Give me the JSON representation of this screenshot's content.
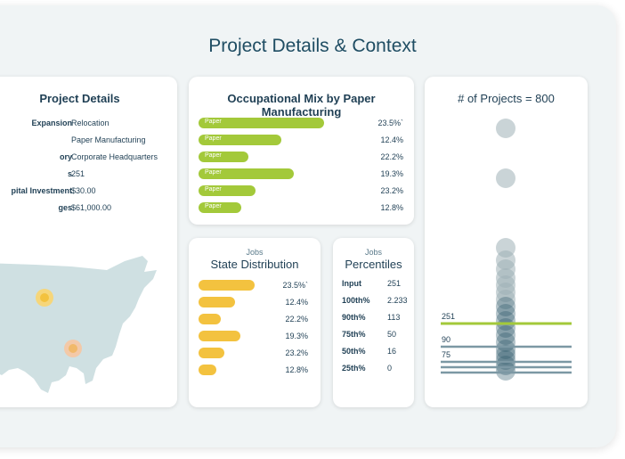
{
  "page_title": "Project Details & Context",
  "details": {
    "title": "Project Details",
    "rows": [
      {
        "key": "Expansion",
        "value": "Relocation"
      },
      {
        "key": "",
        "value": "Paper Manufacturing"
      },
      {
        "key": "ory",
        "value": "Corporate Headquarters"
      },
      {
        "key": "s",
        "value": "251"
      },
      {
        "key": "pital Investment",
        "value": "$30.00"
      },
      {
        "key": "ges",
        "value": "$61,000.00"
      }
    ]
  },
  "occupational": {
    "title": "Occupational Mix by Paper Manufacturing",
    "rows": [
      {
        "label": "Paper",
        "value": "23.5%`",
        "fill": 0.88
      },
      {
        "label": "Paper",
        "value": "12.4%",
        "fill": 0.58
      },
      {
        "label": "Paper",
        "value": "22.2%",
        "fill": 0.35
      },
      {
        "label": "Paper",
        "value": "19.3%",
        "fill": 0.67
      },
      {
        "label": "Paper",
        "value": "23.2%",
        "fill": 0.4
      },
      {
        "label": "Paper",
        "value": "12.8%",
        "fill": 0.3
      }
    ]
  },
  "state": {
    "small_label": "Jobs",
    "title": "State Distribution",
    "rows": [
      {
        "value": "23.5%`",
        "fill": 0.68
      },
      {
        "value": "12.4%",
        "fill": 0.45
      },
      {
        "value": "22.2%",
        "fill": 0.27
      },
      {
        "value": "19.3%",
        "fill": 0.51
      },
      {
        "value": "23.2%",
        "fill": 0.31
      },
      {
        "value": "12.8%",
        "fill": 0.22
      }
    ]
  },
  "percentiles": {
    "small_label": "Jobs",
    "title": "Percentiles",
    "rows": [
      {
        "key": "Input",
        "value": "251"
      },
      {
        "key": "100th%",
        "value": "2.233"
      },
      {
        "key": "90th%",
        "value": "113"
      },
      {
        "key": "75th%",
        "value": "50"
      },
      {
        "key": "50th%",
        "value": "16"
      },
      {
        "key": "25th%",
        "value": "0"
      }
    ]
  },
  "projects": {
    "title": "# of Projects = 800",
    "lines": [
      {
        "label": "251",
        "color": "#a3c93a"
      },
      {
        "label": "90",
        "color": "#7c98a4"
      },
      {
        "label": "75",
        "color": "#7c98a4"
      }
    ]
  },
  "colors": {
    "accent_green": "#a3c93a",
    "accent_yellow": "#f3c23f",
    "map_fill": "#cfe0e2",
    "marker_orange": "#f3c23f",
    "dot_gray": "#9fb0b6",
    "dot_teal": "#2f5a6a"
  }
}
